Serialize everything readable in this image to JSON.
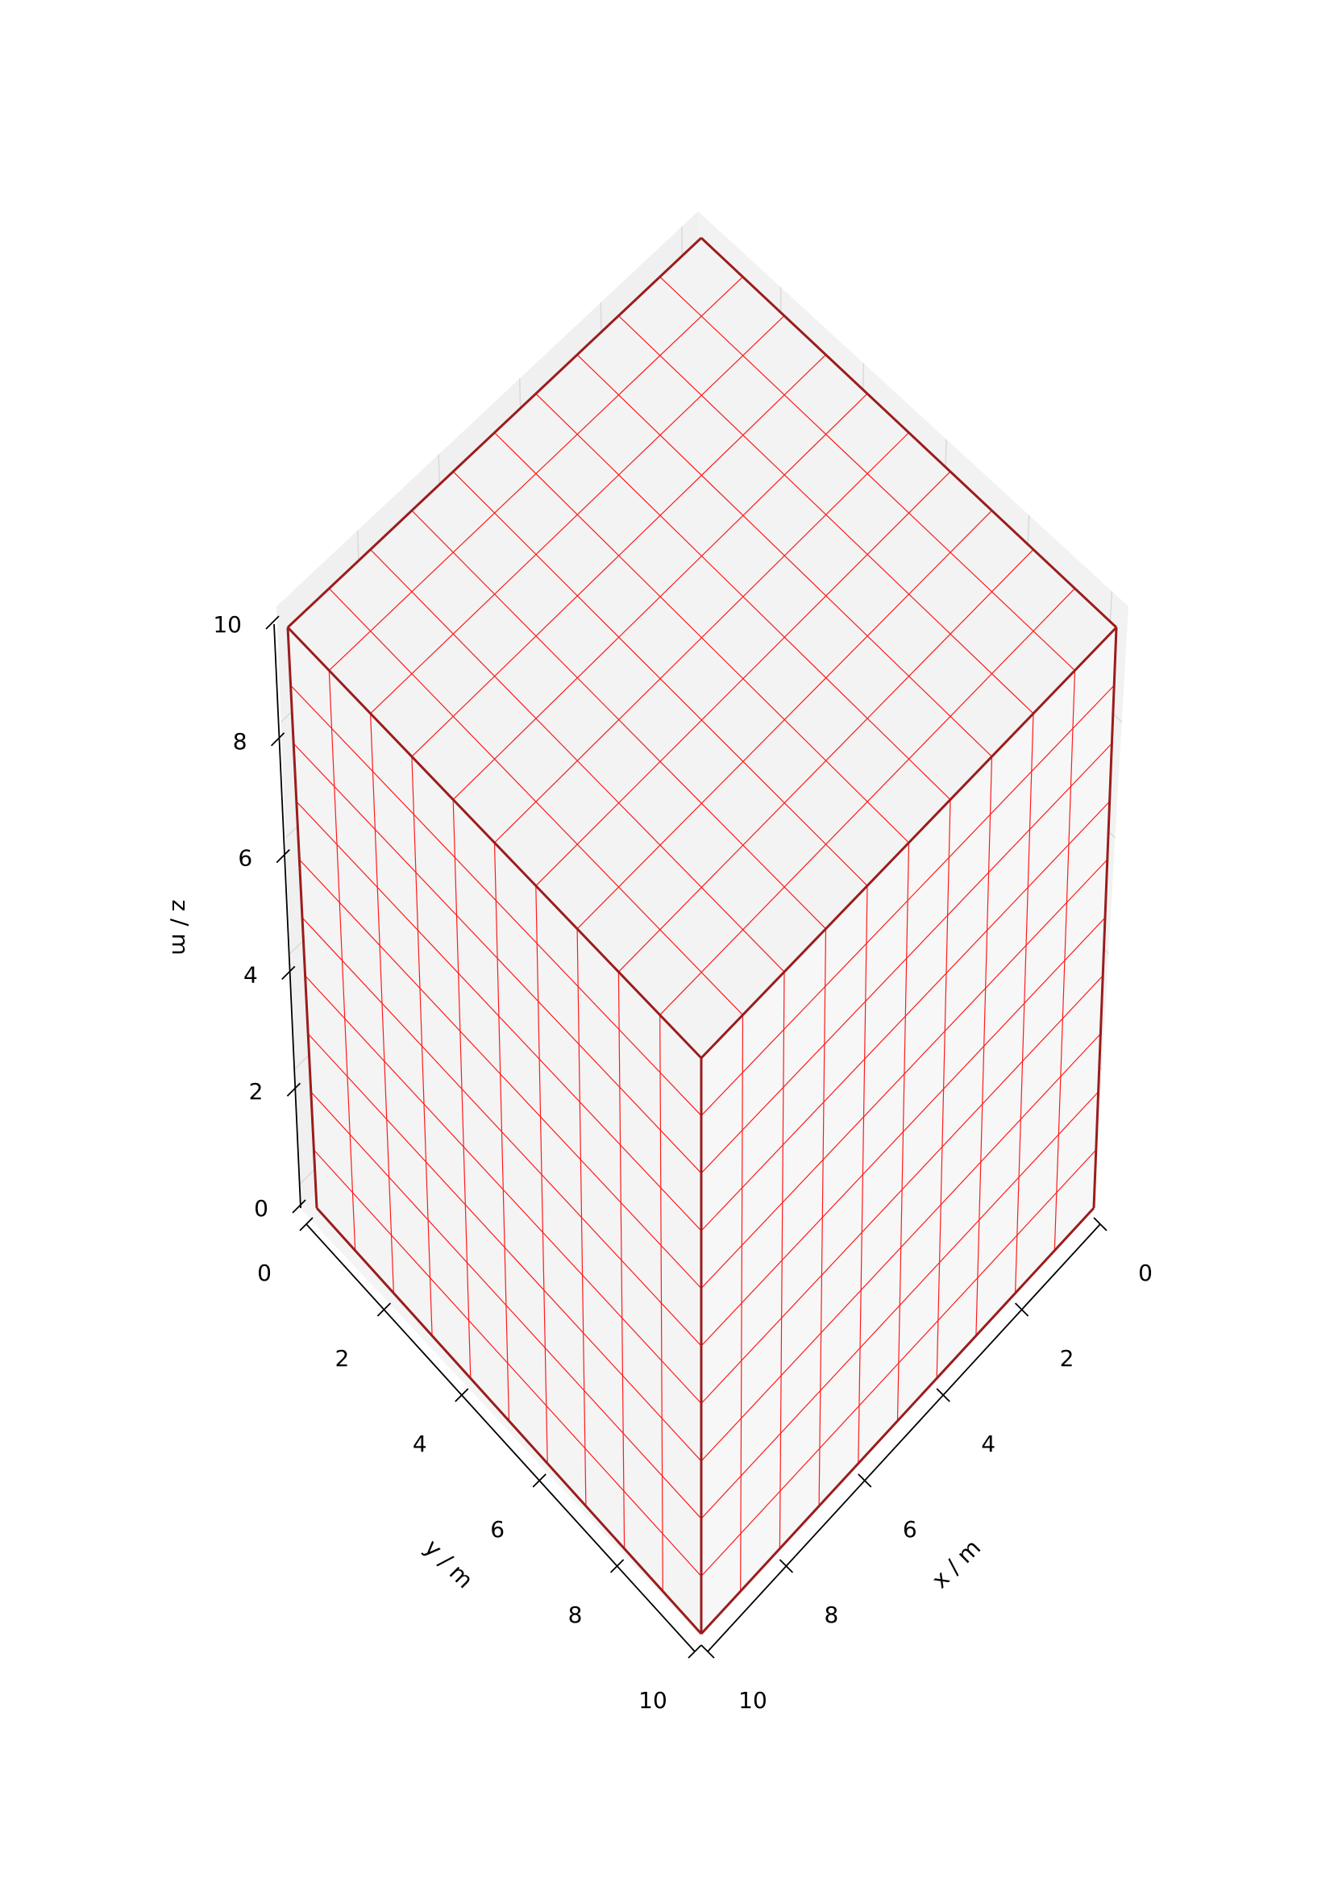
{
  "chart_data": {
    "type": "3d-grid-box",
    "xlabel": "x / m",
    "ylabel": "y / m",
    "zlabel": "z / m",
    "xlim": [
      0,
      10
    ],
    "ylim": [
      0,
      10
    ],
    "zlim": [
      0,
      10
    ],
    "x_ticks": [
      "0",
      "2",
      "4",
      "6",
      "8",
      "10"
    ],
    "y_ticks": [
      "0",
      "2",
      "4",
      "6",
      "8",
      "10"
    ],
    "z_ticks": [
      "0",
      "2",
      "4",
      "6",
      "8",
      "10"
    ],
    "grid_divisions": 10,
    "box": {
      "x": [
        0,
        10
      ],
      "y": [
        0,
        10
      ],
      "z": [
        0,
        10
      ]
    },
    "colors": {
      "grid_lines": "#ff1a1a",
      "box_edges": "#9b1c1c",
      "pane_light": "#f7f7f7",
      "pane_dark": "#eeeeee",
      "background_grid": "#d9d9d9"
    }
  }
}
